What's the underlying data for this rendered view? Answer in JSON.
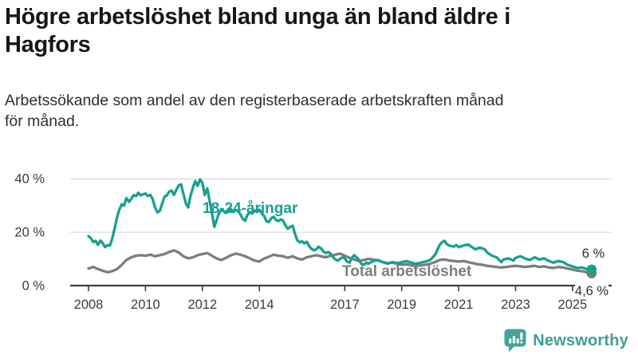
{
  "header": {
    "title_line1": "Högre arbetslöshet bland unga än bland äldre i",
    "title_line2": "Hagfors",
    "subtitle_line1": "Arbetssökande som andel av den registerbaserade arbetskraften månad",
    "subtitle_line2": "för månad."
  },
  "footer": {
    "brand": "Newsworthy",
    "brand_color": "#3f9d94",
    "icon_color": "#47a296"
  },
  "chart_data": {
    "type": "line",
    "unit": "%",
    "xlim": [
      2008,
      2025.75
    ],
    "ylim": [
      0,
      42
    ],
    "grid": true,
    "grid_color": "#dcdcdc",
    "axis_color": "#3f3f3f",
    "tick_text_color": "#3b3b3b",
    "end_label_color": "#2f2f2f",
    "legend_position": "inline-labels",
    "y_ticks": [
      {
        "value": 0,
        "label": "0 %"
      },
      {
        "value": 20,
        "label": "20 %"
      },
      {
        "value": 40,
        "label": "40 %"
      }
    ],
    "x_ticks": [
      {
        "value": 2008,
        "label": "2008"
      },
      {
        "value": 2010,
        "label": "2010"
      },
      {
        "value": 2012,
        "label": "2012"
      },
      {
        "value": 2014,
        "label": "2014"
      },
      {
        "value": 2017,
        "label": "2017"
      },
      {
        "value": 2019,
        "label": "2019"
      },
      {
        "value": 2021,
        "label": "2021"
      },
      {
        "value": 2023,
        "label": "2023"
      },
      {
        "value": 2025,
        "label": "2025"
      }
    ],
    "series": [
      {
        "name": "18-24-åringar",
        "color": "#15a192",
        "end_label": "6 %",
        "points": [
          [
            2008.0,
            18.5
          ],
          [
            2008.08,
            17.8
          ],
          [
            2008.17,
            16.3
          ],
          [
            2008.25,
            16.8
          ],
          [
            2008.33,
            15.3
          ],
          [
            2008.42,
            16.9
          ],
          [
            2008.5,
            15.9
          ],
          [
            2008.58,
            14.4
          ],
          [
            2008.67,
            15.2
          ],
          [
            2008.75,
            15.0
          ],
          [
            2008.83,
            17.5
          ],
          [
            2008.92,
            21.5
          ],
          [
            2009.0,
            25.5
          ],
          [
            2009.08,
            28.5
          ],
          [
            2009.17,
            30.5
          ],
          [
            2009.25,
            30.0
          ],
          [
            2009.33,
            32.8
          ],
          [
            2009.42,
            31.4
          ],
          [
            2009.5,
            32.5
          ],
          [
            2009.58,
            33.9
          ],
          [
            2009.67,
            33.5
          ],
          [
            2009.75,
            34.8
          ],
          [
            2009.83,
            33.8
          ],
          [
            2009.92,
            34.2
          ],
          [
            2010.0,
            34.5
          ],
          [
            2010.08,
            33.6
          ],
          [
            2010.17,
            34.0
          ],
          [
            2010.25,
            32.5
          ],
          [
            2010.33,
            29.5
          ],
          [
            2010.42,
            27.4
          ],
          [
            2010.5,
            28.0
          ],
          [
            2010.58,
            30.5
          ],
          [
            2010.67,
            33.3
          ],
          [
            2010.75,
            33.8
          ],
          [
            2010.83,
            35.2
          ],
          [
            2010.92,
            35.6
          ],
          [
            2011.0,
            34.0
          ],
          [
            2011.08,
            35.8
          ],
          [
            2011.17,
            37.6
          ],
          [
            2011.25,
            37.9
          ],
          [
            2011.33,
            34.5
          ],
          [
            2011.42,
            30.8
          ],
          [
            2011.5,
            29.3
          ],
          [
            2011.58,
            33.5
          ],
          [
            2011.67,
            36.8
          ],
          [
            2011.75,
            39.2
          ],
          [
            2011.83,
            37.4
          ],
          [
            2011.92,
            39.8
          ],
          [
            2012.0,
            38.5
          ],
          [
            2012.08,
            34.0
          ],
          [
            2012.17,
            36.4
          ],
          [
            2012.25,
            32.0
          ],
          [
            2012.33,
            27.5
          ],
          [
            2012.42,
            22.0
          ],
          [
            2012.5,
            24.5
          ],
          [
            2012.58,
            27.0
          ],
          [
            2012.67,
            28.6
          ],
          [
            2012.75,
            27.8
          ],
          [
            2012.83,
            27.2
          ],
          [
            2012.92,
            28.0
          ],
          [
            2013.0,
            28.6
          ],
          [
            2013.08,
            27.6
          ],
          [
            2013.17,
            28.3
          ],
          [
            2013.25,
            27.9
          ],
          [
            2013.33,
            26.8
          ],
          [
            2013.42,
            25.0
          ],
          [
            2013.5,
            24.3
          ],
          [
            2013.58,
            26.5
          ],
          [
            2013.67,
            27.4
          ],
          [
            2013.75,
            27.0
          ],
          [
            2013.83,
            28.2
          ],
          [
            2013.92,
            27.6
          ],
          [
            2014.0,
            28.4
          ],
          [
            2014.08,
            27.2
          ],
          [
            2014.17,
            26.0
          ],
          [
            2014.25,
            24.2
          ],
          [
            2014.33,
            23.8
          ],
          [
            2014.42,
            25.3
          ],
          [
            2014.5,
            25.8
          ],
          [
            2014.58,
            24.6
          ],
          [
            2014.67,
            24.2
          ],
          [
            2014.75,
            24.8
          ],
          [
            2014.83,
            24.4
          ],
          [
            2014.92,
            22.5
          ],
          [
            2015.0,
            21.3
          ],
          [
            2015.08,
            22.0
          ],
          [
            2015.17,
            22.4
          ],
          [
            2015.25,
            19.5
          ],
          [
            2015.33,
            17.0
          ],
          [
            2015.42,
            16.2
          ],
          [
            2015.5,
            16.6
          ],
          [
            2015.58,
            15.8
          ],
          [
            2015.67,
            16.4
          ],
          [
            2015.75,
            14.8
          ],
          [
            2015.83,
            13.8
          ],
          [
            2015.92,
            13.2
          ],
          [
            2016.0,
            13.6
          ],
          [
            2016.08,
            14.6
          ],
          [
            2016.17,
            13.9
          ],
          [
            2016.25,
            12.8
          ],
          [
            2016.33,
            12.2
          ],
          [
            2016.42,
            12.6
          ],
          [
            2016.5,
            12.0
          ],
          [
            2016.58,
            10.8
          ],
          [
            2016.67,
            9.8
          ],
          [
            2016.75,
            9.4
          ],
          [
            2016.83,
            10.0
          ],
          [
            2016.92,
            10.6
          ],
          [
            2017.0,
            10.2
          ],
          [
            2017.08,
            9.0
          ],
          [
            2017.17,
            8.6
          ],
          [
            2017.25,
            10.4
          ],
          [
            2017.33,
            11.4
          ],
          [
            2017.42,
            10.6
          ],
          [
            2017.5,
            9.6
          ],
          [
            2017.58,
            8.2
          ],
          [
            2017.67,
            7.8
          ],
          [
            2017.75,
            8.6
          ],
          [
            2017.83,
            8.2
          ],
          [
            2017.92,
            8.8
          ],
          [
            2018.0,
            9.2
          ],
          [
            2018.17,
            9.6
          ],
          [
            2018.33,
            8.8
          ],
          [
            2018.5,
            8.2
          ],
          [
            2018.67,
            8.8
          ],
          [
            2018.83,
            8.4
          ],
          [
            2019.0,
            8.8
          ],
          [
            2019.17,
            9.2
          ],
          [
            2019.33,
            8.6
          ],
          [
            2019.5,
            8.2
          ],
          [
            2019.67,
            8.6
          ],
          [
            2019.83,
            9.0
          ],
          [
            2020.0,
            9.6
          ],
          [
            2020.17,
            11.5
          ],
          [
            2020.33,
            15.2
          ],
          [
            2020.42,
            16.3
          ],
          [
            2020.5,
            16.8
          ],
          [
            2020.58,
            15.6
          ],
          [
            2020.67,
            15.0
          ],
          [
            2020.83,
            14.6
          ],
          [
            2020.92,
            15.2
          ],
          [
            2021.0,
            14.4
          ],
          [
            2021.17,
            15.0
          ],
          [
            2021.33,
            15.4
          ],
          [
            2021.5,
            14.2
          ],
          [
            2021.58,
            13.6
          ],
          [
            2021.75,
            14.2
          ],
          [
            2021.92,
            13.6
          ],
          [
            2022.0,
            12.4
          ],
          [
            2022.17,
            11.2
          ],
          [
            2022.33,
            10.6
          ],
          [
            2022.5,
            8.8
          ],
          [
            2022.58,
            9.8
          ],
          [
            2022.75,
            10.2
          ],
          [
            2022.92,
            9.4
          ],
          [
            2023.0,
            10.4
          ],
          [
            2023.17,
            11.0
          ],
          [
            2023.33,
            10.2
          ],
          [
            2023.5,
            9.6
          ],
          [
            2023.67,
            10.6
          ],
          [
            2023.83,
            9.8
          ],
          [
            2024.0,
            10.2
          ],
          [
            2024.17,
            9.2
          ],
          [
            2024.33,
            8.6
          ],
          [
            2024.5,
            9.2
          ],
          [
            2024.67,
            8.8
          ],
          [
            2024.83,
            7.8
          ],
          [
            2025.0,
            7.2
          ],
          [
            2025.17,
            6.6
          ],
          [
            2025.33,
            6.8
          ],
          [
            2025.5,
            6.2
          ],
          [
            2025.67,
            6.0
          ]
        ]
      },
      {
        "name": "Total arbetslöshet",
        "color": "#7d7d7d",
        "end_label": "4,6 %",
        "points": [
          [
            2008.0,
            6.4
          ],
          [
            2008.17,
            7.0
          ],
          [
            2008.33,
            6.2
          ],
          [
            2008.5,
            5.6
          ],
          [
            2008.67,
            5.0
          ],
          [
            2008.83,
            5.4
          ],
          [
            2009.0,
            6.2
          ],
          [
            2009.17,
            7.8
          ],
          [
            2009.33,
            9.6
          ],
          [
            2009.5,
            10.6
          ],
          [
            2009.67,
            11.2
          ],
          [
            2009.83,
            11.4
          ],
          [
            2010.0,
            11.2
          ],
          [
            2010.17,
            11.6
          ],
          [
            2010.33,
            11.0
          ],
          [
            2010.5,
            11.4
          ],
          [
            2010.67,
            11.8
          ],
          [
            2010.83,
            12.6
          ],
          [
            2011.0,
            13.2
          ],
          [
            2011.17,
            12.4
          ],
          [
            2011.33,
            11.0
          ],
          [
            2011.5,
            10.2
          ],
          [
            2011.67,
            10.6
          ],
          [
            2011.83,
            11.4
          ],
          [
            2012.0,
            11.8
          ],
          [
            2012.17,
            12.2
          ],
          [
            2012.33,
            11.2
          ],
          [
            2012.5,
            10.2
          ],
          [
            2012.67,
            9.6
          ],
          [
            2012.83,
            10.4
          ],
          [
            2013.0,
            11.4
          ],
          [
            2013.17,
            12.0
          ],
          [
            2013.33,
            11.6
          ],
          [
            2013.5,
            11.0
          ],
          [
            2013.67,
            10.2
          ],
          [
            2013.83,
            9.4
          ],
          [
            2014.0,
            9.0
          ],
          [
            2014.17,
            10.2
          ],
          [
            2014.33,
            10.8
          ],
          [
            2014.5,
            11.6
          ],
          [
            2014.67,
            11.2
          ],
          [
            2014.83,
            11.0
          ],
          [
            2015.0,
            10.4
          ],
          [
            2015.17,
            11.0
          ],
          [
            2015.33,
            10.2
          ],
          [
            2015.5,
            9.8
          ],
          [
            2015.67,
            10.6
          ],
          [
            2015.83,
            11.0
          ],
          [
            2016.0,
            11.4
          ],
          [
            2016.17,
            11.0
          ],
          [
            2016.33,
            10.6
          ],
          [
            2016.5,
            11.2
          ],
          [
            2016.67,
            11.6
          ],
          [
            2016.83,
            12.0
          ],
          [
            2017.0,
            11.2
          ],
          [
            2017.17,
            10.4
          ],
          [
            2017.33,
            9.8
          ],
          [
            2017.5,
            9.2
          ],
          [
            2017.67,
            9.6
          ],
          [
            2017.83,
            10.0
          ],
          [
            2018.0,
            9.8
          ],
          [
            2018.17,
            9.4
          ],
          [
            2018.33,
            8.8
          ],
          [
            2018.5,
            8.4
          ],
          [
            2018.67,
            8.6
          ],
          [
            2018.83,
            8.2
          ],
          [
            2019.0,
            7.8
          ],
          [
            2019.17,
            8.0
          ],
          [
            2019.33,
            7.6
          ],
          [
            2019.5,
            7.4
          ],
          [
            2019.67,
            7.6
          ],
          [
            2019.83,
            7.8
          ],
          [
            2020.0,
            8.2
          ],
          [
            2020.17,
            8.8
          ],
          [
            2020.33,
            9.6
          ],
          [
            2020.5,
            9.8
          ],
          [
            2020.67,
            9.4
          ],
          [
            2020.83,
            9.2
          ],
          [
            2021.0,
            9.0
          ],
          [
            2021.17,
            9.2
          ],
          [
            2021.33,
            8.8
          ],
          [
            2021.5,
            8.4
          ],
          [
            2021.67,
            8.0
          ],
          [
            2021.83,
            7.8
          ],
          [
            2022.0,
            7.4
          ],
          [
            2022.17,
            7.2
          ],
          [
            2022.33,
            7.0
          ],
          [
            2022.5,
            6.8
          ],
          [
            2022.67,
            7.0
          ],
          [
            2022.83,
            7.2
          ],
          [
            2023.0,
            7.4
          ],
          [
            2023.17,
            7.2
          ],
          [
            2023.33,
            7.0
          ],
          [
            2023.5,
            7.2
          ],
          [
            2023.67,
            7.4
          ],
          [
            2023.83,
            7.0
          ],
          [
            2024.0,
            7.2
          ],
          [
            2024.17,
            6.8
          ],
          [
            2024.33,
            6.6
          ],
          [
            2024.5,
            7.0
          ],
          [
            2024.67,
            6.8
          ],
          [
            2024.83,
            6.4
          ],
          [
            2025.0,
            6.0
          ],
          [
            2025.17,
            5.6
          ],
          [
            2025.33,
            5.4
          ],
          [
            2025.5,
            5.0
          ],
          [
            2025.67,
            4.6
          ]
        ]
      }
    ]
  }
}
